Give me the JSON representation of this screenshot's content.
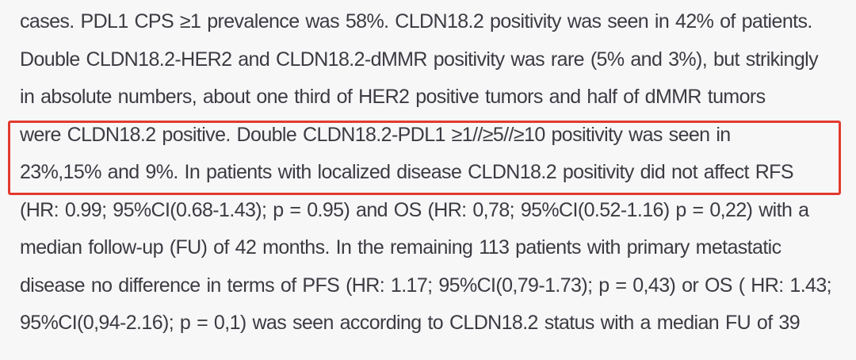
{
  "page": {
    "background_color": "#f7f7f8",
    "text_color": "#3b3b42"
  },
  "paragraph": {
    "lines": [
      "cases. PDL1 CPS ≥1 prevalence was 58%. CLDN18.2 positivity was seen in 42% of patients.",
      "Double CLDN18.2-HER2 and CLDN18.2-dMMR positivity was rare (5% and 3%), but strikingly",
      "in absolute numbers, about one third of HER2 positive tumors and half of dMMR tumors",
      "were CLDN18.2 positive. Double CLDN18.2-PDL1 ≥1//≥5//≥10 positivity was seen in",
      "23%,15% and 9%. In patients with localized disease CLDN18.2 positivity did not affect RFS",
      "(HR: 0.99; 95%CI(0.68-1.43); p = 0.95) and OS (HR: 0,78; 95%CI(0.52-1.16) p = 0,22) with a",
      "median follow-up (FU) of 42 months. In the remaining 113 patients with primary metastatic",
      "disease no difference in terms of PFS (HR: 1.17; 95%CI(0,79-1.73); p = 0,43) or OS ( HR: 1.43;",
      "95%CI(0,94-2.16); p = 0,1) was seen according to CLDN18.2 status with a median FU of 39"
    ]
  },
  "annotation": {
    "type": "red-highlight-rectangle",
    "border_color": "#e23b2e",
    "highlighted_text_lines": [
      4,
      5
    ]
  }
}
